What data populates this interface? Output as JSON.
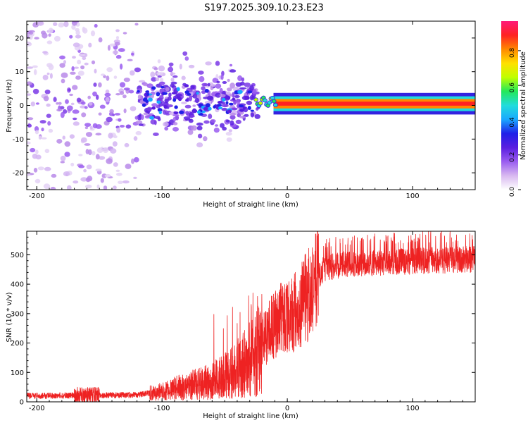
{
  "title": "S197.2025.309.10.23.E23",
  "colors": {
    "trace": "#ee2222",
    "axis": "#000000",
    "colormap": [
      "#ffffff",
      "#d8b8f0",
      "#9a5cf0",
      "#5a1ee0",
      "#1f1fe8",
      "#1aa8ff",
      "#22dcdc",
      "#23e85a",
      "#c0ff00",
      "#ffe000",
      "#ff8800",
      "#ff2222",
      "#ff1a7a"
    ]
  },
  "chart_data": [
    {
      "type": "heatmap",
      "name": "spectrogram",
      "xlabel": "Height of straight line (km)",
      "ylabel": "Frequency (Hz)",
      "xlim": [
        -208,
        150
      ],
      "ylim": [
        -25,
        25
      ],
      "xticks": [
        -200,
        -100,
        0,
        100
      ],
      "yticks": [
        -20,
        -10,
        0,
        10,
        20
      ],
      "colorbar": {
        "label": "Normalized spectral amplitude",
        "range": [
          0.0,
          0.97
        ],
        "ticks": [
          0.0,
          0.2,
          0.4,
          0.6,
          0.8
        ]
      },
      "description_values": {
        "dominant_frequency_hz": 0.5,
        "strong_signal_start_km": -25
      }
    },
    {
      "type": "line",
      "name": "snr",
      "xlabel": "Height of straight line (km)",
      "ylabel": "SNR (10 * v/v)",
      "xlim": [
        -208,
        150
      ],
      "ylim": [
        0,
        580
      ],
      "xticks": [
        -200,
        -100,
        0,
        100
      ],
      "yticks": [
        0,
        100,
        200,
        300,
        400,
        500
      ],
      "baseline_points": [
        {
          "x": -208,
          "y": 20
        },
        {
          "x": -170,
          "y": 22
        },
        {
          "x": -140,
          "y": 22
        },
        {
          "x": -120,
          "y": 24
        },
        {
          "x": -100,
          "y": 35
        },
        {
          "x": -80,
          "y": 55
        },
        {
          "x": -60,
          "y": 70
        },
        {
          "x": -45,
          "y": 100
        },
        {
          "x": -35,
          "y": 130
        },
        {
          "x": -25,
          "y": 160
        },
        {
          "x": -15,
          "y": 240
        },
        {
          "x": -5,
          "y": 280
        },
        {
          "x": 5,
          "y": 300
        },
        {
          "x": 12,
          "y": 330
        },
        {
          "x": 20,
          "y": 400
        },
        {
          "x": 30,
          "y": 455
        },
        {
          "x": 50,
          "y": 470
        },
        {
          "x": 80,
          "y": 475
        },
        {
          "x": 110,
          "y": 480
        },
        {
          "x": 150,
          "y": 485
        }
      ]
    }
  ]
}
